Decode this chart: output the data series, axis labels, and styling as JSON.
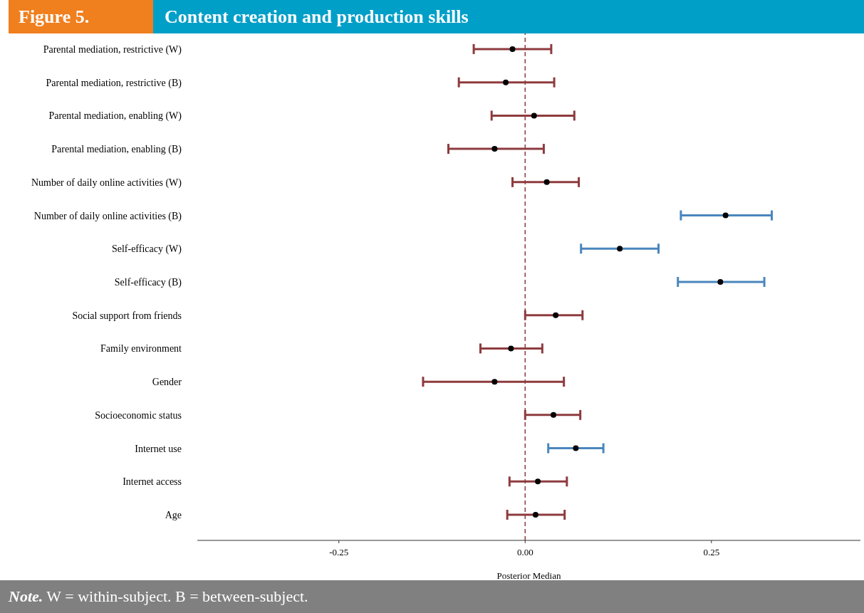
{
  "chart_data": {
    "type": "scatter",
    "title": "Content creation and production skills",
    "xlabel": "Posterior Median",
    "annotations": [
      "Figure 5.",
      "Note. W = within-subject. B = between-subject."
    ],
    "orientation": "horizontal",
    "categories": [
      "Parental mediation, restrictive (W)",
      "Parental mediation, restrictive (B)",
      "Parental mediation, enabling (W)",
      "Parental mediation, enabling (B)",
      "Number of daily online activities (W)",
      "Number of daily online activities (B)",
      "Self-efficacy (W)",
      "Self-efficacy (B)",
      "Social support from friends",
      "Family environment",
      "Gender",
      "Socioeconomic status",
      "Internet use",
      "Internet access",
      "Age"
    ],
    "xlim": [
      -0.44,
      0.45
    ],
    "xticks": [
      {
        "value": -0.25,
        "label": "-0.25"
      },
      {
        "value": 0,
        "label": "0.00"
      },
      {
        "value": 0.25,
        "label": "0.25"
      }
    ],
    "marker": "circle",
    "series": [
      {
        "color": "#000000",
        "values": [
          -0.017,
          -0.026,
          0.012,
          -0.041,
          0.029,
          0.269,
          0.127,
          0.262,
          0.041,
          -0.019,
          -0.041,
          0.038,
          0.068,
          0.017,
          0.014
        ],
        "errors": [
          [
            -0.069,
            0.035
          ],
          [
            -0.089,
            0.039
          ],
          [
            -0.045,
            0.066
          ],
          [
            -0.103,
            0.025
          ],
          [
            -0.017,
            0.072
          ],
          [
            0.209,
            0.331
          ],
          [
            0.075,
            0.179
          ],
          [
            0.205,
            0.321
          ],
          [
            0.0,
            0.077
          ],
          [
            -0.06,
            0.023
          ],
          [
            -0.137,
            0.052
          ],
          [
            0.0,
            0.074
          ],
          [
            0.031,
            0.105
          ],
          [
            -0.021,
            0.056
          ],
          [
            -0.024,
            0.053
          ]
        ]
      }
    ],
    "ref_lines": [
      {
        "axis": "x",
        "value": 0,
        "color": "#8e3b3e",
        "line_style": "dashed"
      }
    ]
  }
}
